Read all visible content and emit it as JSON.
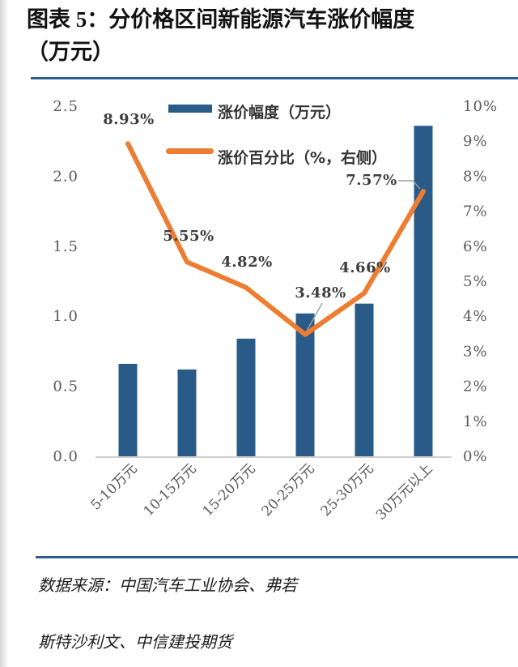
{
  "figure": {
    "title_line1": "图表 5：分价格区间新能源汽车涨价幅度",
    "title_line2": "（万元）"
  },
  "legend": [
    {
      "label": "涨价幅度（万元）",
      "type": "bar",
      "color": "#2a5a88"
    },
    {
      "label": "涨价百分比（%，右侧）",
      "type": "line",
      "color": "#ed7d31"
    }
  ],
  "source": {
    "line1": "数据来源：中国汽车工业协会、弗若",
    "line2": "斯特沙利文、中信建投期货"
  },
  "chart_data": {
    "type": "bar",
    "subtype": "bar+line dual-axis",
    "title": "分价格区间新能源汽车涨价幅度（万元）",
    "categories": [
      "5-10万元",
      "10-15万元",
      "15-20万元",
      "20-25万元",
      "25-30万元",
      "30万元以上"
    ],
    "series": [
      {
        "name": "涨价幅度（万元）",
        "type": "bar",
        "axis": "left",
        "color": "#2a5a88",
        "values": [
          0.66,
          0.62,
          0.84,
          1.02,
          1.09,
          2.36
        ]
      },
      {
        "name": "涨价百分比（%，右侧）",
        "type": "line",
        "axis": "right",
        "color": "#ed7d31",
        "values": [
          8.93,
          5.55,
          4.82,
          3.48,
          4.66,
          7.57
        ],
        "point_labels": [
          "8.93%",
          "5.55%",
          "4.82%",
          "3.48%",
          "4.66%",
          "7.57%"
        ]
      }
    ],
    "left_axis": {
      "min": 0,
      "max": 2.5,
      "ticks": [
        "0.0",
        "0.5",
        "1.0",
        "1.5",
        "2.0",
        "2.5"
      ]
    },
    "right_axis": {
      "min": 0,
      "max": 10,
      "ticks": [
        "0%",
        "1%",
        "2%",
        "3%",
        "4%",
        "5%",
        "6%",
        "7%",
        "8%",
        "9%",
        "10%"
      ]
    },
    "grid": "off",
    "legend_position": "top-inside",
    "colors": {
      "bar": "#2a5a88",
      "line": "#ed7d31",
      "rule": "#2b5d8e",
      "axis_text": "#595959",
      "data_label": "#3d3d3d",
      "baseline": "#d0d0d0",
      "leader": "#9aa0a6"
    }
  }
}
